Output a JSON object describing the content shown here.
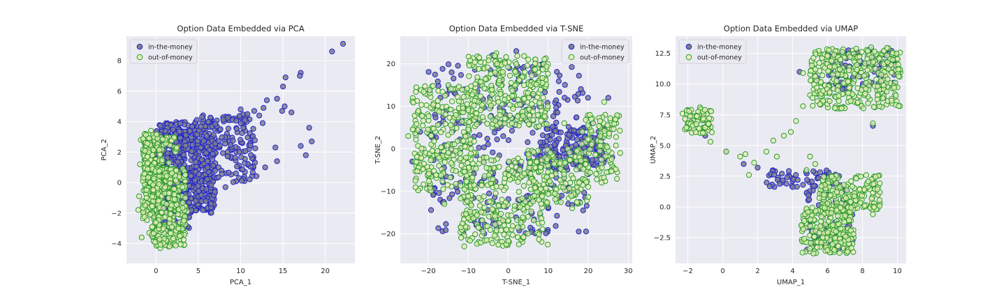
{
  "colors": {
    "panel_bg": "#eaeaf2",
    "grid": "#ffffff",
    "itm_fill": "#7a7f8e",
    "itm_edge": "#2222cc",
    "otm_fill": "#e6efb8",
    "otm_edge": "#2a9a2a",
    "text": "#262626"
  },
  "chart_data": [
    {
      "type": "scatter",
      "title": "Option Data Embedded via PCA",
      "xlabel": "PCA_1",
      "ylabel": "PCA_2",
      "xlim": [
        -3.5,
        23.5
      ],
      "ylim": [
        -5.3,
        9.6
      ],
      "xticks": [
        0,
        5,
        10,
        15,
        20
      ],
      "yticks": [
        -4,
        -2,
        0,
        2,
        4,
        6,
        8
      ],
      "legend": [
        "in-the-money",
        "out-of-money"
      ],
      "legend_position": "top-left",
      "series": [
        {
          "name": "in-the-money",
          "points": [
            [
              22.1,
              9.1
            ],
            [
              20.8,
              8.6
            ],
            [
              17.1,
              7.2
            ],
            [
              17.0,
              7.0
            ],
            [
              15.3,
              6.9
            ],
            [
              15.0,
              6.3
            ],
            [
              14.3,
              5.5
            ],
            [
              13.1,
              5.4
            ],
            [
              15.2,
              5.0
            ],
            [
              16.0,
              4.6
            ],
            [
              12.7,
              4.9
            ],
            [
              11.6,
              4.7
            ],
            [
              14.9,
              4.7
            ],
            [
              10.0,
              4.8
            ],
            [
              10.6,
              4.4
            ],
            [
              9.2,
              4.2
            ],
            [
              12.2,
              4.4
            ],
            [
              8.0,
              4.0
            ],
            [
              7.2,
              3.6
            ],
            [
              12.6,
              3.9
            ],
            [
              9.6,
              3.3
            ],
            [
              18.1,
              3.6
            ],
            [
              8.5,
              3.0
            ],
            [
              6.3,
              3.2
            ],
            [
              11.3,
              3.0
            ],
            [
              17.1,
              2.4
            ],
            [
              18.4,
              2.7
            ],
            [
              14.1,
              2.3
            ],
            [
              17.7,
              1.8
            ],
            [
              14.3,
              1.4
            ],
            [
              12.9,
              1.0
            ],
            [
              11.5,
              1.0
            ],
            [
              10.5,
              0.7
            ],
            [
              9.8,
              0.3
            ],
            [
              8.2,
              -0.3
            ],
            [
              6.9,
              -0.5
            ],
            [
              5.5,
              -1.0
            ],
            [
              4.7,
              -1.6
            ],
            [
              3.8,
              -2.3
            ],
            [
              3.2,
              -3.0
            ],
            [
              8.9,
              1.6
            ],
            [
              7.5,
              2.3
            ],
            [
              6.0,
              2.6
            ],
            [
              5.0,
              3.4
            ],
            [
              4.0,
              2.1
            ],
            [
              3.1,
              1.6
            ],
            [
              2.4,
              0.5
            ],
            [
              2.5,
              2.7
            ],
            [
              4.5,
              0.0
            ],
            [
              6.1,
              0.3
            ],
            [
              1.2,
              3.1
            ],
            [
              0.8,
              2.0
            ],
            [
              3.6,
              -0.5
            ],
            [
              4.4,
              2.7
            ],
            [
              7.4,
              1.0
            ],
            [
              9.5,
              2.0
            ],
            [
              5.5,
              1.4
            ],
            [
              2.0,
              -1.0
            ],
            [
              11.0,
              2.2
            ],
            [
              6.5,
              4.2
            ]
          ],
          "scatter_boxes": [
            {
              "x": [
                0,
                7
              ],
              "y": [
                -2,
                4
              ],
              "n": 500
            },
            {
              "x": [
                0,
                4
              ],
              "y": [
                -3,
                3.5
              ],
              "n": 200
            },
            {
              "x": [
                4,
                12
              ],
              "y": [
                0,
                4.5
              ],
              "n": 160
            }
          ]
        },
        {
          "name": "out-of-money",
          "points": [
            [
              -1.7,
              -3.6
            ],
            [
              -0.8,
              -3.3
            ],
            [
              -2.1,
              -1.8
            ],
            [
              -1.5,
              -1.5
            ],
            [
              -2.0,
              -0.9
            ],
            [
              -1.2,
              0.5
            ],
            [
              -1.9,
              1.2
            ],
            [
              -1.8,
              2.8
            ],
            [
              -1.3,
              3.2
            ],
            [
              -0.6,
              3.4
            ],
            [
              0.1,
              -4.0
            ],
            [
              0.5,
              -4.3
            ],
            [
              1.5,
              -4.2
            ],
            [
              2.1,
              -3.8
            ],
            [
              2.8,
              -3.5
            ],
            [
              3.3,
              -2.6
            ],
            [
              3.7,
              -1.9
            ],
            [
              1.0,
              -2.8
            ],
            [
              0.5,
              -2.0
            ]
          ],
          "scatter_boxes": [
            {
              "x": [
                -1.6,
                0.6
              ],
              "y": [
                -2.5,
                3.2
              ],
              "n": 260
            },
            {
              "x": [
                -0.5,
                3.5
              ],
              "y": [
                -4.2,
                1.0
              ],
              "n": 260
            },
            {
              "x": [
                0.3,
                2.5
              ],
              "y": [
                -1.5,
                3.0
              ],
              "n": 60
            }
          ]
        }
      ]
    },
    {
      "type": "scatter",
      "title": "Option Data Embedded via T-SNE",
      "xlabel": "T-SNE_1",
      "ylabel": "T-SNE_2",
      "xlim": [
        -27,
        31
      ],
      "ylim": [
        -27,
        26.5
      ],
      "xticks": [
        -20,
        -10,
        0,
        10,
        20,
        30
      ],
      "yticks": [
        -20,
        -10,
        0,
        10,
        20
      ],
      "legend": [
        "in-the-money",
        "out-of-money"
      ],
      "legend_position": "top-right",
      "series": [
        {
          "name": "in-the-money",
          "points": [
            [
              -4,
              22
            ],
            [
              2,
              23
            ],
            [
              -11,
              14
            ],
            [
              -22,
              4
            ],
            [
              -24,
              -3
            ],
            [
              -12,
              -8
            ],
            [
              -6,
              -20
            ],
            [
              6,
              -19
            ],
            [
              15,
              -13
            ],
            [
              21,
              6
            ],
            [
              25,
              12
            ],
            [
              26,
              -2
            ],
            [
              12,
              2
            ],
            [
              17,
              4
            ],
            [
              22,
              0
            ],
            [
              14,
              -4
            ],
            [
              20,
              -6
            ],
            [
              10,
              -14
            ],
            [
              -8,
              -18
            ],
            [
              -17,
              -12
            ]
          ],
          "scatter_boxes": [
            {
              "x": [
                8,
                24
              ],
              "y": [
                -5,
                5
              ],
              "n": 160
            },
            {
              "x": [
                -20,
                20
              ],
              "y": [
                -20,
                20
              ],
              "n": 300
            }
          ]
        },
        {
          "name": "out-of-money",
          "points": [
            [
              -3,
              22.5
            ],
            [
              5,
              21
            ],
            [
              -15,
              15
            ],
            [
              -25,
              3
            ],
            [
              -23,
              -4
            ],
            [
              -16,
              -13
            ],
            [
              -11,
              -23
            ],
            [
              -2,
              -22
            ],
            [
              8,
              -16
            ],
            [
              16,
              -14
            ],
            [
              20,
              -9
            ],
            [
              26,
              -4
            ],
            [
              28,
              -1
            ],
            [
              27,
              6
            ],
            [
              24,
              11
            ],
            [
              14,
              6
            ],
            [
              7,
              -3
            ],
            [
              -4,
              5
            ],
            [
              1,
              10
            ]
          ],
          "scatter_boxes": [
            {
              "x": [
                -24,
                -8
              ],
              "y": [
                -10,
                15
              ],
              "n": 260
            },
            {
              "x": [
                -10,
                10
              ],
              "y": [
                5,
                22
              ],
              "n": 260
            },
            {
              "x": [
                -12,
                10
              ],
              "y": [
                -23,
                -2
              ],
              "n": 280
            },
            {
              "x": [
                5,
                20
              ],
              "y": [
                -13,
                0
              ],
              "n": 140
            },
            {
              "x": [
                18,
                28
              ],
              "y": [
                -8,
                8
              ],
              "n": 100
            }
          ]
        }
      ]
    },
    {
      "type": "scatter",
      "title": "Option Data Embedded via UMAP",
      "xlabel": "UMAP_1",
      "ylabel": "UMAP_2",
      "xlim": [
        -2.7,
        10.5
      ],
      "ylim": [
        -4.6,
        13.9
      ],
      "xticks": [
        -2,
        0,
        2,
        4,
        6,
        8,
        10
      ],
      "yticks": [
        -2.5,
        0.0,
        2.5,
        5.0,
        7.5,
        10.0,
        12.5
      ],
      "legend": [
        "in-the-money",
        "out-of-money"
      ],
      "legend_position": "top-left",
      "series": [
        {
          "name": "in-the-money",
          "points": [
            [
              -1.0,
              5.8
            ],
            [
              0.2,
              4.5
            ],
            [
              1.2,
              3.5
            ],
            [
              2.0,
              3.2
            ],
            [
              3.0,
              2.9
            ],
            [
              4.0,
              2.1
            ],
            [
              4.6,
              1.8
            ],
            [
              5.3,
              1.7
            ],
            [
              6.0,
              1.6
            ],
            [
              6.8,
              1.6
            ],
            [
              5.4,
              10.5
            ],
            [
              6.6,
              11.5
            ],
            [
              7.5,
              12.5
            ],
            [
              8.5,
              12.8
            ],
            [
              9.8,
              12.5
            ],
            [
              6.0,
              1.0
            ],
            [
              5.6,
              -0.5
            ],
            [
              5.2,
              -2.0
            ],
            [
              8.6,
              6.6
            ],
            [
              4.4,
              11.0
            ]
          ],
          "scatter_boxes": [
            {
              "x": [
                2.5,
                6.8
              ],
              "y": [
                1.6,
                3.0
              ],
              "n": 60
            },
            {
              "x": [
                6,
                10
              ],
              "y": [
                9.5,
                12.8
              ],
              "n": 80
            },
            {
              "x": [
                4.8,
                7.5
              ],
              "y": [
                -3.5,
                1.5
              ],
              "n": 60
            }
          ]
        },
        {
          "name": "out-of-money",
          "points": [
            [
              -2.3,
              7.6
            ],
            [
              -1.8,
              7.9
            ],
            [
              -1.3,
              8.1
            ],
            [
              -2.0,
              6.8
            ],
            [
              -1.3,
              6.1
            ],
            [
              -0.7,
              5.3
            ],
            [
              0.2,
              4.5
            ],
            [
              1.0,
              4.1
            ],
            [
              1.3,
              4.3
            ],
            [
              1.8,
              3.6
            ],
            [
              1.5,
              2.6
            ],
            [
              2.5,
              4.5
            ],
            [
              2.9,
              5.4
            ],
            [
              3.5,
              5.8
            ],
            [
              3.1,
              4.1
            ],
            [
              3.9,
              6.1
            ],
            [
              4.2,
              7.0
            ],
            [
              4.6,
              8.2
            ],
            [
              5.0,
              9.1
            ],
            [
              4.6,
              10.9
            ],
            [
              5.2,
              11.0
            ],
            [
              8.6,
              6.8
            ],
            [
              5.0,
              4.1
            ],
            [
              5.3,
              3.5
            ],
            [
              4.8,
              3.0
            ],
            [
              9.0,
              0.3
            ],
            [
              8.6,
              -0.6
            ],
            [
              6.2,
              -3.7
            ],
            [
              7.5,
              -2.5
            ]
          ],
          "scatter_boxes": [
            {
              "x": [
                5,
                10.2
              ],
              "y": [
                8,
                13
              ],
              "n": 320
            },
            {
              "x": [
                5.5,
                9
              ],
              "y": [
                -0.5,
                2.6
              ],
              "n": 180
            },
            {
              "x": [
                4.5,
                7.5
              ],
              "y": [
                -3.8,
                0
              ],
              "n": 220
            },
            {
              "x": [
                -2.2,
                -0.6
              ],
              "y": [
                6,
                8
              ],
              "n": 60
            }
          ]
        }
      ]
    }
  ]
}
